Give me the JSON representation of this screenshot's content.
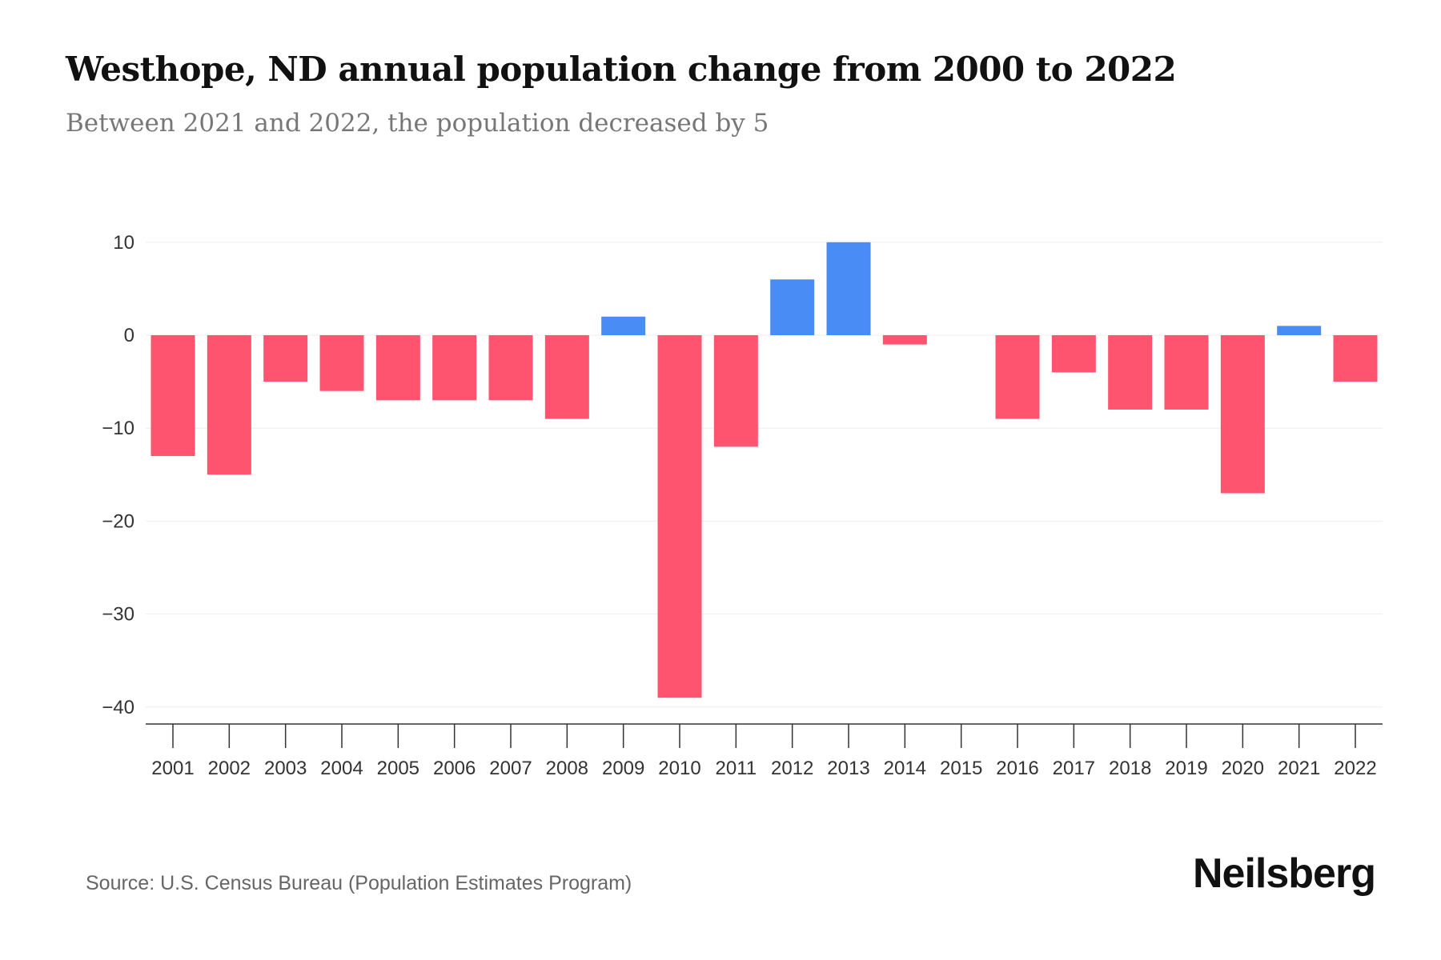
{
  "chart_data": {
    "type": "bar",
    "title": "Westhope, ND annual population change from 2000 to 2022",
    "subtitle": "Between 2021 and 2022, the population decreased by 5",
    "xlabel": "",
    "ylabel": "",
    "categories": [
      "2001",
      "2002",
      "2003",
      "2004",
      "2005",
      "2006",
      "2007",
      "2008",
      "2009",
      "2010",
      "2011",
      "2012",
      "2013",
      "2014",
      "2015",
      "2016",
      "2017",
      "2018",
      "2019",
      "2020",
      "2021",
      "2022"
    ],
    "values": [
      -13,
      -15,
      -5,
      -6,
      -7,
      -7,
      -7,
      -9,
      2,
      -39,
      -12,
      6,
      10,
      -1,
      0,
      -9,
      -4,
      -8,
      -8,
      -17,
      1,
      -5
    ],
    "ylim": [
      -42,
      10
    ],
    "yticks": [
      10,
      0,
      -10,
      -20,
      -30,
      -40
    ],
    "ytick_labels": [
      "10",
      "0",
      "−10",
      "−20",
      "−30",
      "−40"
    ],
    "grid": true,
    "colors": {
      "positive": "#4a8cf6",
      "negative": "#ff546f"
    }
  },
  "footer": {
    "source": "Source: U.S. Census Bureau (Population Estimates Program)",
    "logo": "Neilsberg"
  }
}
